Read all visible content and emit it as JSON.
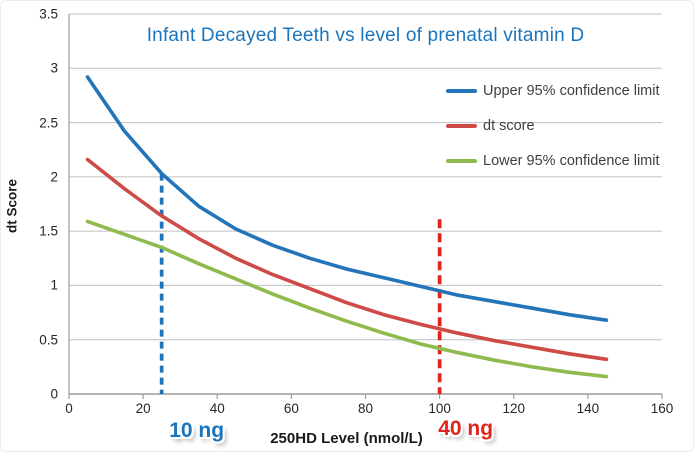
{
  "chart_data": {
    "type": "line",
    "title": "Infant Decayed Teeth vs level of prenatal vitamin D",
    "title_color": "#1B75BC",
    "xlabel": "250HD Level (nmol/L)",
    "ylabel": "dt Score",
    "xlim": [
      0,
      160
    ],
    "ylim": [
      0,
      3.5
    ],
    "grid": "horizontal",
    "grid_color": "#BFBFBF",
    "axis_color": "#9C9C9C",
    "tick_text_color": "#262626",
    "legend_text_color": "#3F3F3F",
    "legend_position": "inside-top-right",
    "x_ticks": [
      {
        "value": 0,
        "label": "0"
      },
      {
        "value": 20,
        "label": "20"
      },
      {
        "value": 40,
        "label": "40"
      },
      {
        "value": 60,
        "label": "60"
      },
      {
        "value": 80,
        "label": "80"
      },
      {
        "value": 100,
        "label": "100"
      },
      {
        "value": 120,
        "label": "120"
      },
      {
        "value": 140,
        "label": "140"
      },
      {
        "value": 160,
        "label": "160"
      }
    ],
    "y_ticks": [
      {
        "value": 0,
        "label": "0"
      },
      {
        "value": 0.5,
        "label": "0.5"
      },
      {
        "value": 1,
        "label": "1"
      },
      {
        "value": 1.5,
        "label": "1.5"
      },
      {
        "value": 2,
        "label": "2"
      },
      {
        "value": 2.5,
        "label": "2.5"
      },
      {
        "value": 3,
        "label": "3"
      },
      {
        "value": 3.5,
        "label": "3.5"
      }
    ],
    "x": [
      5,
      15,
      25,
      35,
      45,
      55,
      65,
      75,
      85,
      95,
      105,
      115,
      125,
      135,
      145
    ],
    "series": [
      {
        "name": "Upper 95% confidence limit",
        "color": "#2474B9",
        "values": [
          2.92,
          2.42,
          2.03,
          1.73,
          1.52,
          1.37,
          1.25,
          1.15,
          1.07,
          0.99,
          0.91,
          0.85,
          0.79,
          0.73,
          0.68
        ]
      },
      {
        "name": "dt score",
        "color": "#CE4A46",
        "values": [
          2.16,
          1.89,
          1.64,
          1.43,
          1.25,
          1.1,
          0.97,
          0.84,
          0.73,
          0.64,
          0.56,
          0.49,
          0.43,
          0.37,
          0.32
        ]
      },
      {
        "name": "Lower 95% confidence limit",
        "color": "#8FBA4D",
        "values": [
          1.59,
          1.47,
          1.35,
          1.2,
          1.06,
          0.92,
          0.79,
          0.67,
          0.56,
          0.46,
          0.38,
          0.31,
          0.25,
          0.2,
          0.16
        ]
      }
    ],
    "annotations": [
      {
        "label": "10 ng",
        "x": 25,
        "y_top": 2.03,
        "color": "#1B75BC",
        "line_style": "dashed"
      },
      {
        "label": "40 ng",
        "x": 100,
        "y_top": 1.61,
        "color": "#E0241B",
        "line_style": "dashed"
      }
    ]
  }
}
